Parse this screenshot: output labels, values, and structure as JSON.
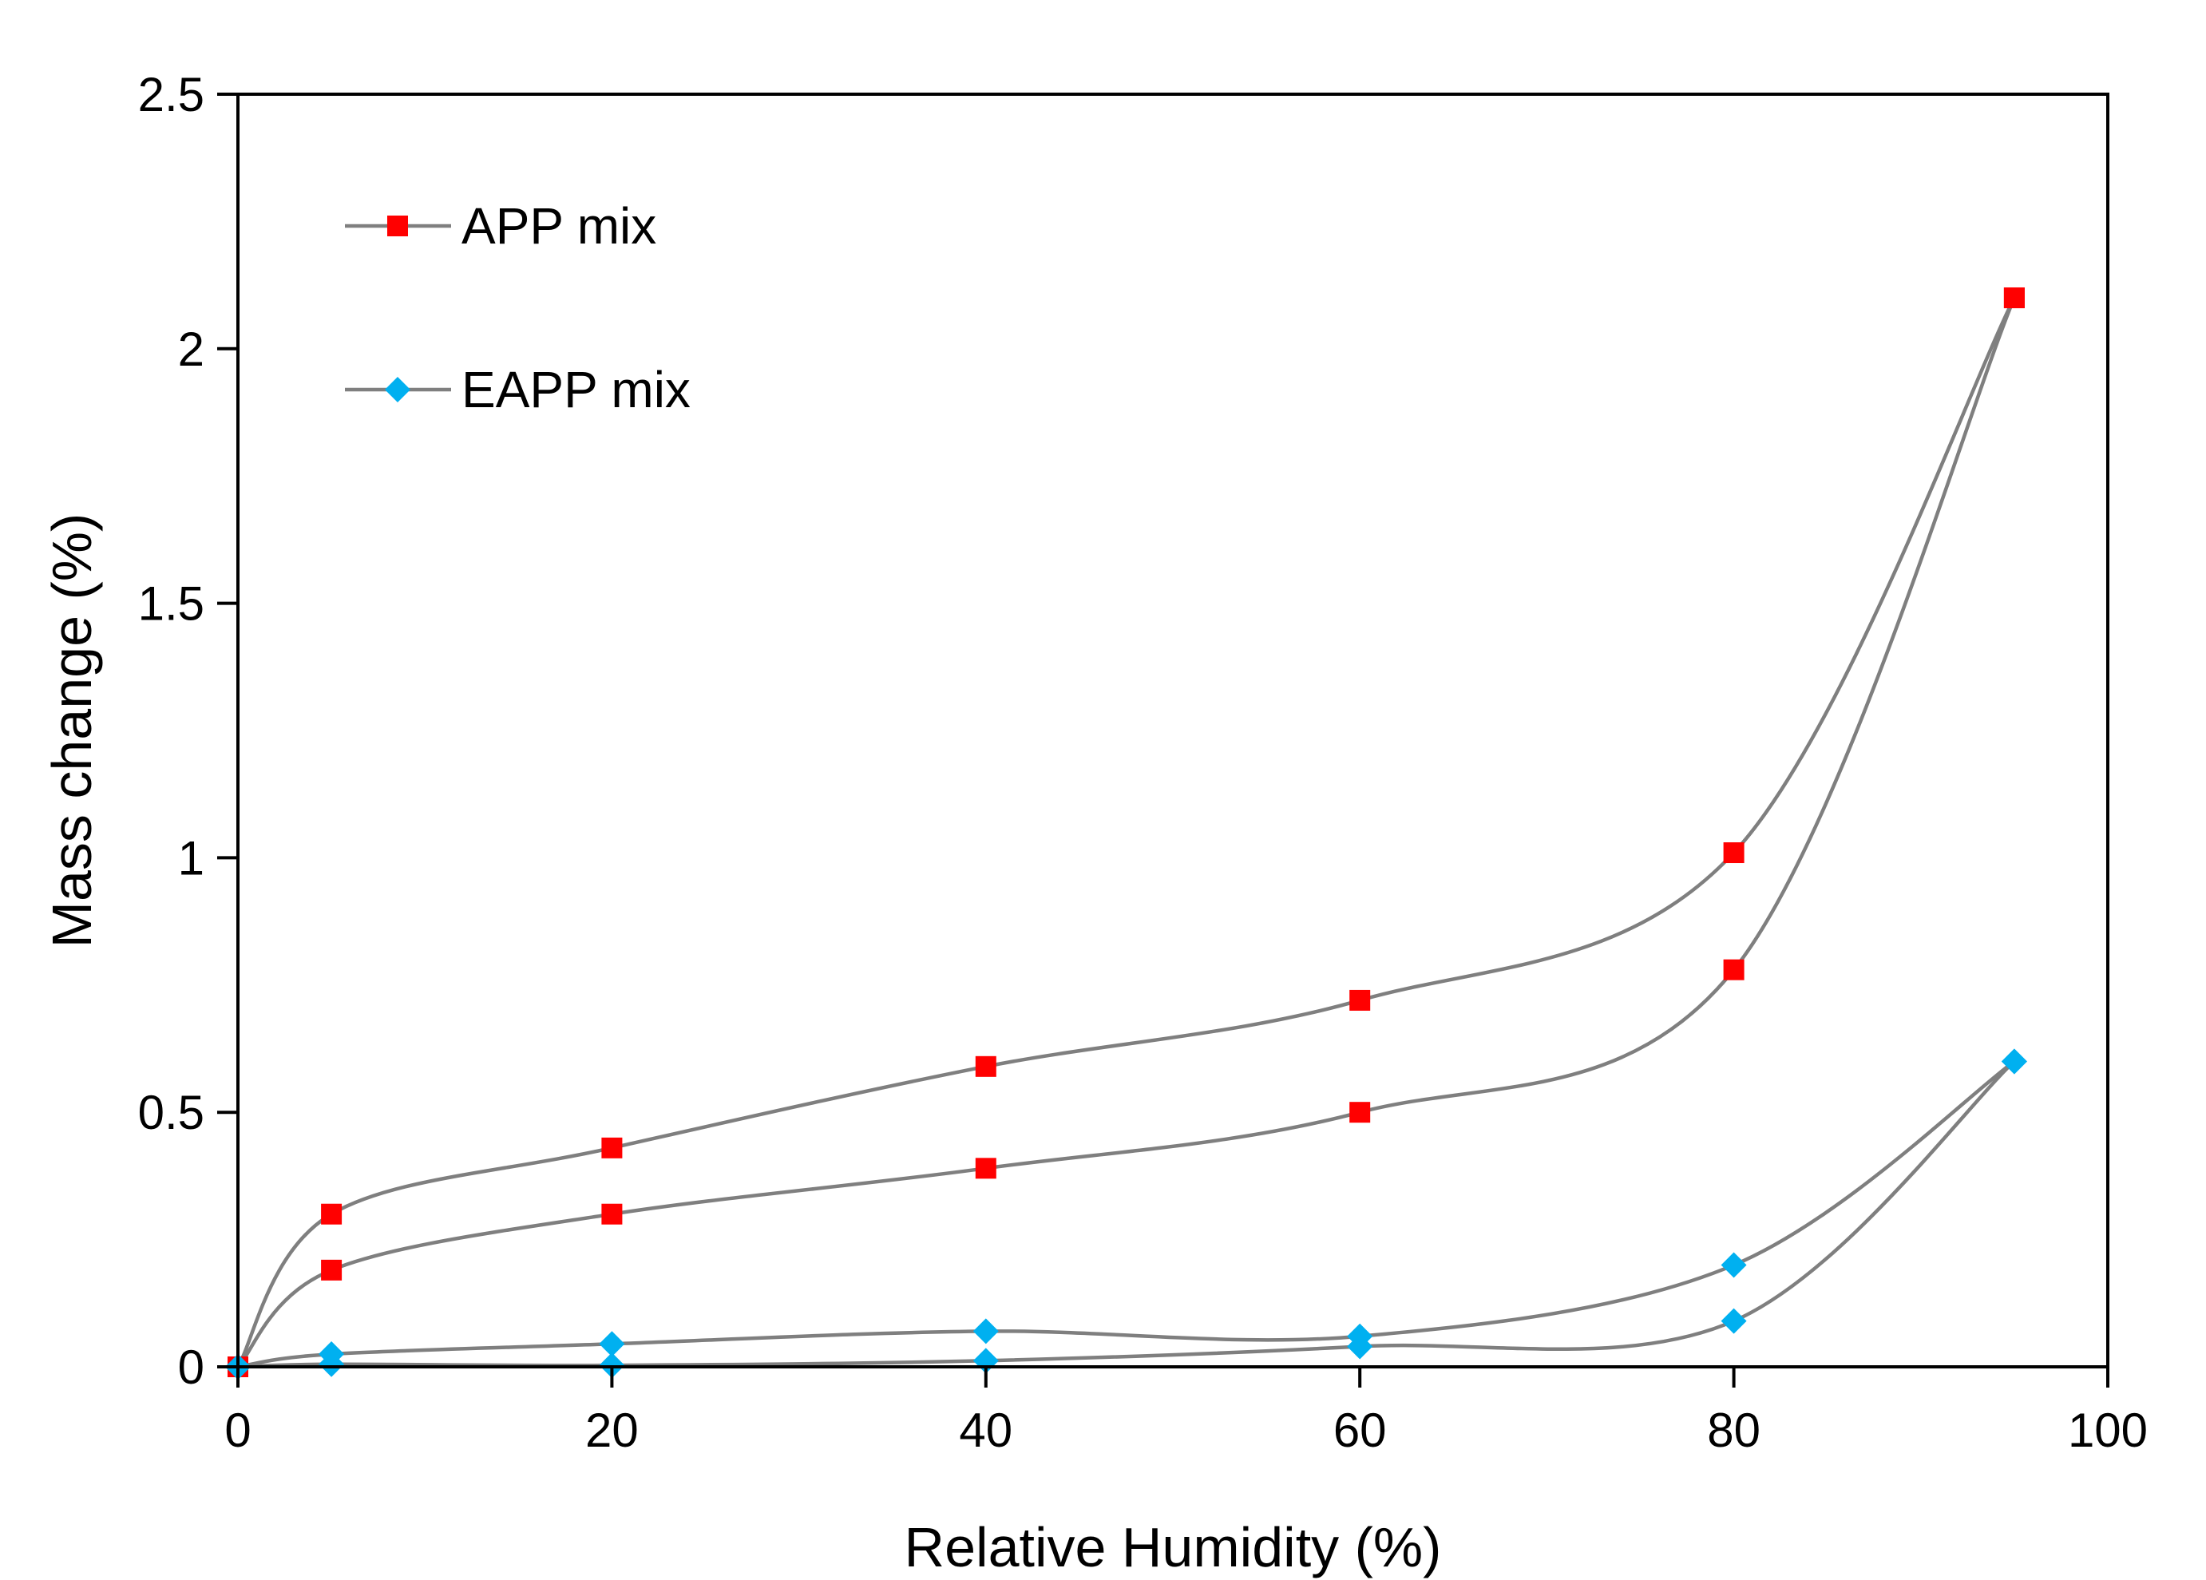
{
  "chart_data": {
    "type": "scatter",
    "title": "",
    "xlabel": "Relative Humidity (%)",
    "ylabel": "Mass change (%)",
    "xlim": [
      0,
      100
    ],
    "ylim": [
      0,
      2.5
    ],
    "xticks": [
      0,
      20,
      40,
      60,
      80,
      100
    ],
    "yticks": [
      0,
      0.5,
      1,
      1.5,
      2,
      2.5
    ],
    "xtick_labels": [
      "0",
      "20",
      "40",
      "60",
      "80",
      "100"
    ],
    "ytick_labels": [
      "0",
      "0.5",
      "1",
      "1.5",
      "2",
      "2.5"
    ],
    "grid": false,
    "legend_position": "top-left",
    "line_color": "#7f7f7f",
    "series": [
      {
        "name": "APP mix",
        "label": "APP mix",
        "marker": "square",
        "color": "#ff0000",
        "branches": [
          {
            "part": "sorption",
            "x": [
              0,
              5,
              20,
              40,
              60,
              80,
              95
            ],
            "y": [
              0,
              0.19,
              0.3,
              0.39,
              0.5,
              0.78,
              2.1
            ]
          },
          {
            "part": "desorption",
            "x": [
              95,
              80,
              60,
              40,
              20,
              5,
              0
            ],
            "y": [
              2.1,
              1.01,
              0.72,
              0.59,
              0.43,
              0.3,
              0
            ]
          }
        ]
      },
      {
        "name": "EAPP mix",
        "label": "EAPP mix",
        "marker": "diamond",
        "color": "#00b0f0",
        "branches": [
          {
            "part": "sorption",
            "x": [
              0,
              5,
              20,
              40,
              60,
              80,
              95
            ],
            "y": [
              0,
              0.005,
              0.003,
              0.012,
              0.04,
              0.09,
              0.6
            ]
          },
          {
            "part": "desorption",
            "x": [
              95,
              80,
              60,
              40,
              20,
              5,
              0
            ],
            "y": [
              0.6,
              0.2,
              0.06,
              0.07,
              0.045,
              0.025,
              0
            ]
          }
        ]
      }
    ]
  }
}
